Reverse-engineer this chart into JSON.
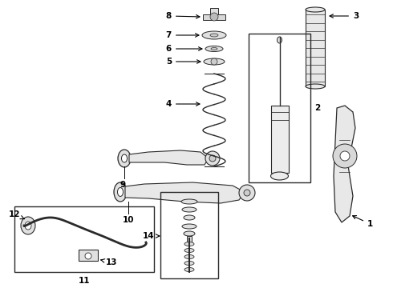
{
  "background_color": "#ffffff",
  "line_color": "#2a2a2a",
  "font_size": 7.5,
  "fig_w": 4.9,
  "fig_h": 3.6,
  "dpi": 100
}
